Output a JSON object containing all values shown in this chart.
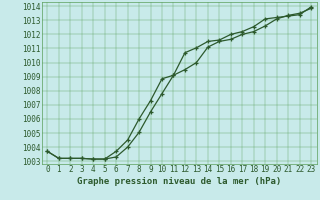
{
  "title": "Graphe pression niveau de la mer (hPa)",
  "background_color": "#c8eaea",
  "grid_color": "#5a9e5a",
  "line_color": "#2d5a2d",
  "ylim_min": 1002.8,
  "ylim_max": 1014.3,
  "xlim_min": -0.5,
  "xlim_max": 23.5,
  "yticks": [
    1003,
    1004,
    1005,
    1006,
    1007,
    1008,
    1009,
    1010,
    1011,
    1012,
    1013,
    1014
  ],
  "xticks": [
    0,
    1,
    2,
    3,
    4,
    5,
    6,
    7,
    8,
    9,
    10,
    11,
    12,
    13,
    14,
    15,
    16,
    17,
    18,
    19,
    20,
    21,
    22,
    23
  ],
  "series1_x": [
    0,
    1,
    2,
    3,
    4,
    5,
    6,
    7,
    8,
    9,
    10,
    11,
    12,
    13,
    14,
    15,
    16,
    17,
    18,
    19,
    20,
    21,
    22,
    23
  ],
  "series1_y": [
    1003.7,
    1003.2,
    1003.2,
    1003.2,
    1003.15,
    1003.15,
    1003.3,
    1004.0,
    1005.05,
    1006.5,
    1007.8,
    1009.1,
    1009.5,
    1010.0,
    1011.1,
    1011.5,
    1011.65,
    1012.0,
    1012.2,
    1012.6,
    1013.1,
    1013.35,
    1013.5,
    1013.85
  ],
  "series2_x": [
    0,
    1,
    2,
    3,
    4,
    5,
    6,
    7,
    8,
    9,
    10,
    11,
    12,
    13,
    14,
    15,
    16,
    17,
    18,
    19,
    20,
    21,
    22,
    23
  ],
  "series2_y": [
    1003.7,
    1003.2,
    1003.2,
    1003.2,
    1003.15,
    1003.15,
    1003.7,
    1004.5,
    1006.0,
    1007.3,
    1008.85,
    1009.1,
    1010.7,
    1011.05,
    1011.5,
    1011.6,
    1012.0,
    1012.2,
    1012.55,
    1013.1,
    1013.2,
    1013.3,
    1013.4,
    1013.95
  ],
  "xlabel_fontsize": 5.5,
  "ylabel_fontsize": 5.5,
  "title_fontsize": 6.5,
  "linewidth": 0.9,
  "markersize": 3.5
}
